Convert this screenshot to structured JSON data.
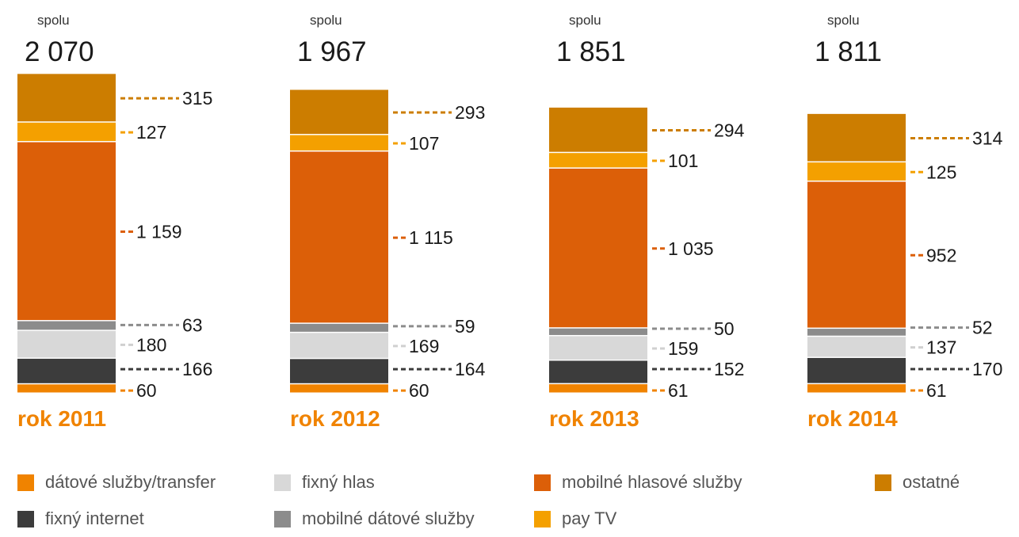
{
  "chart_data": {
    "type": "bar",
    "stacked": true,
    "total_label": "spolu",
    "categories": [
      "rok 2011",
      "rok 2012",
      "rok 2013",
      "rok 2014"
    ],
    "totals": [
      "2 070",
      "1 967",
      "1 851",
      "1 811"
    ],
    "series": [
      {
        "name": "dátové služby/transfer",
        "color": "#F08300",
        "values": [
          60,
          60,
          61,
          61
        ],
        "labels": [
          "60",
          "60",
          "61",
          "61"
        ]
      },
      {
        "name": "fixný internet",
        "color": "#3C3C3C",
        "values": [
          166,
          164,
          152,
          170
        ],
        "labels": [
          "166",
          "164",
          "152",
          "170"
        ]
      },
      {
        "name": "fixný hlas",
        "color": "#D8D8D8",
        "values": [
          180,
          169,
          159,
          137
        ],
        "labels": [
          "180",
          "169",
          "159",
          "137"
        ]
      },
      {
        "name": "mobilné dátové služby",
        "color": "#8C8C8C",
        "values": [
          63,
          59,
          50,
          52
        ],
        "labels": [
          "63",
          "59",
          "50",
          "52"
        ]
      },
      {
        "name": "mobilné hlasové služby",
        "color": "#DC5F08",
        "values": [
          1159,
          1115,
          1035,
          952
        ],
        "labels": [
          "1 159",
          "1 115",
          "1 035",
          "952"
        ]
      },
      {
        "name": "pay TV",
        "color": "#F4A000",
        "values": [
          127,
          107,
          101,
          125
        ],
        "labels": [
          "127",
          "107",
          "101",
          "125"
        ]
      },
      {
        "name": "ostatné",
        "color": "#CC7D00",
        "values": [
          315,
          293,
          294,
          314
        ],
        "labels": [
          "315",
          "293",
          "294",
          "314"
        ]
      }
    ],
    "year_label_color": "#F08300",
    "legend_placement": "bottom",
    "grid": false
  }
}
